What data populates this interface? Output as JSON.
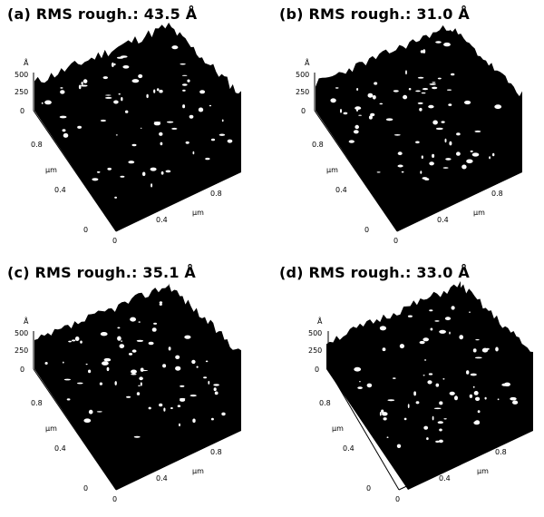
{
  "colors": {
    "surface": "#000000",
    "grains": "#ffffff",
    "background": "#ffffff"
  },
  "panels": [
    {
      "id": "a",
      "title": "(a) RMS rough.: 43.5 Å",
      "rms_angstrom": 43.5,
      "z_unit": "Å",
      "z_ticks": [
        "500",
        "250",
        "0"
      ],
      "left_unit": "μm",
      "left_ticks": [
        "0.8",
        "0.4",
        "0"
      ],
      "right_unit": "μm",
      "right_ticks": [
        "0",
        "0.4",
        "0.8"
      ]
    },
    {
      "id": "b",
      "title": "(b) RMS rough.: 31.0 Å",
      "rms_angstrom": 31.0,
      "z_unit": "Å",
      "z_ticks": [
        "500",
        "250",
        "0"
      ],
      "left_unit": "μm",
      "left_ticks": [
        "0.8",
        "0.4",
        "0"
      ],
      "right_unit": "μm",
      "right_ticks": [
        "0",
        "0.4",
        "0.8"
      ]
    },
    {
      "id": "c",
      "title": "(c) RMS rough.: 35.1 Å",
      "rms_angstrom": 35.1,
      "z_unit": "Å",
      "z_ticks": [
        "500",
        "250",
        "0"
      ],
      "left_unit": "μm",
      "left_ticks": [
        "0.8",
        "0.4",
        "0"
      ],
      "right_unit": "μm",
      "right_ticks": [
        "0",
        "0.4",
        "0.8"
      ]
    },
    {
      "id": "d",
      "title": "(d) RMS rough.: 33.0 Å",
      "rms_angstrom": 33.0,
      "z_unit": "Å",
      "z_ticks": [
        "500",
        "250",
        "0"
      ],
      "left_unit": "μm",
      "left_ticks": [
        "0.8",
        "0.4",
        "0"
      ],
      "right_unit": "μm",
      "right_ticks": [
        "0",
        "0.4",
        "0.8"
      ]
    }
  ]
}
